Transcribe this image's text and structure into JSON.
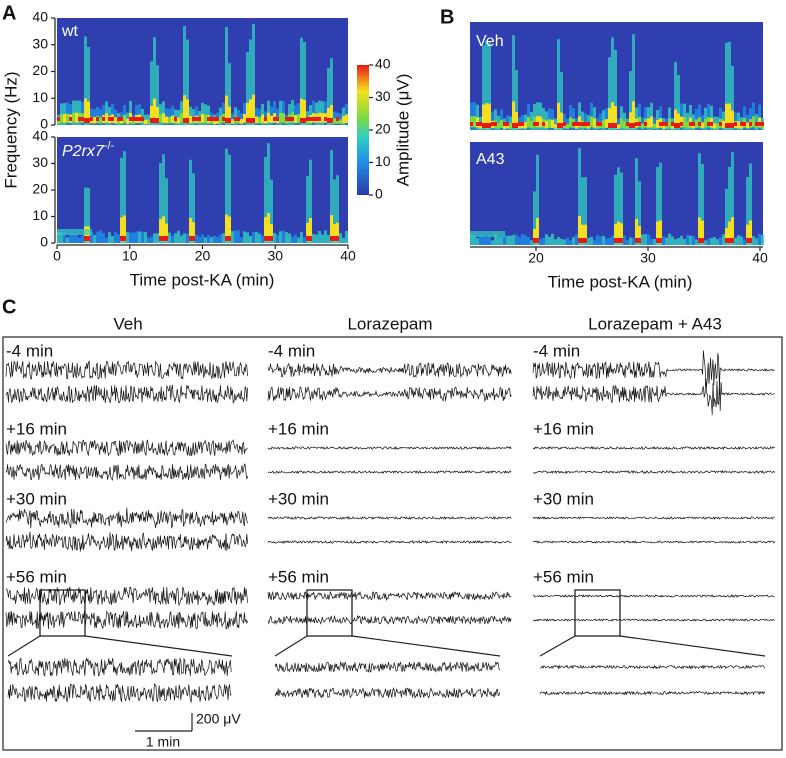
{
  "panels": {
    "A": {
      "label": "A",
      "spectrograms": [
        {
          "label": "wt"
        },
        {
          "label": "P2rx7",
          "superscript": "-/-"
        }
      ],
      "yticks": [
        0,
        10,
        20,
        30,
        40
      ],
      "y_label": "Frequency (Hz)",
      "xticks": [
        0,
        10,
        20,
        30,
        40
      ],
      "x_label": "Time post-KA (min)",
      "colorbar": {
        "ticks": [
          0,
          10,
          20,
          30,
          40
        ],
        "label": "Amplitude (μV)"
      }
    },
    "B": {
      "label": "B",
      "spectrograms": [
        {
          "label": "Veh"
        },
        {
          "label": "A43"
        }
      ],
      "xticks": [
        20,
        30,
        40
      ],
      "x_label": "Time post-KA (min)"
    },
    "C": {
      "label": "C",
      "columns": [
        {
          "title": "Veh",
          "rows": [
            "-4 min",
            "+16 min",
            "+30 min",
            "+56 min"
          ]
        },
        {
          "title": "Lorazepam",
          "rows": [
            "-4 min",
            "+16 min",
            "+30 min",
            "+56 min"
          ]
        },
        {
          "title": "Lorazepam + A43",
          "rows": [
            "-4 min",
            "+16 min",
            "+30 min",
            "+56 min"
          ]
        }
      ],
      "scale_bar": {
        "amplitude": "200 μV",
        "time": "1 min"
      }
    }
  }
}
